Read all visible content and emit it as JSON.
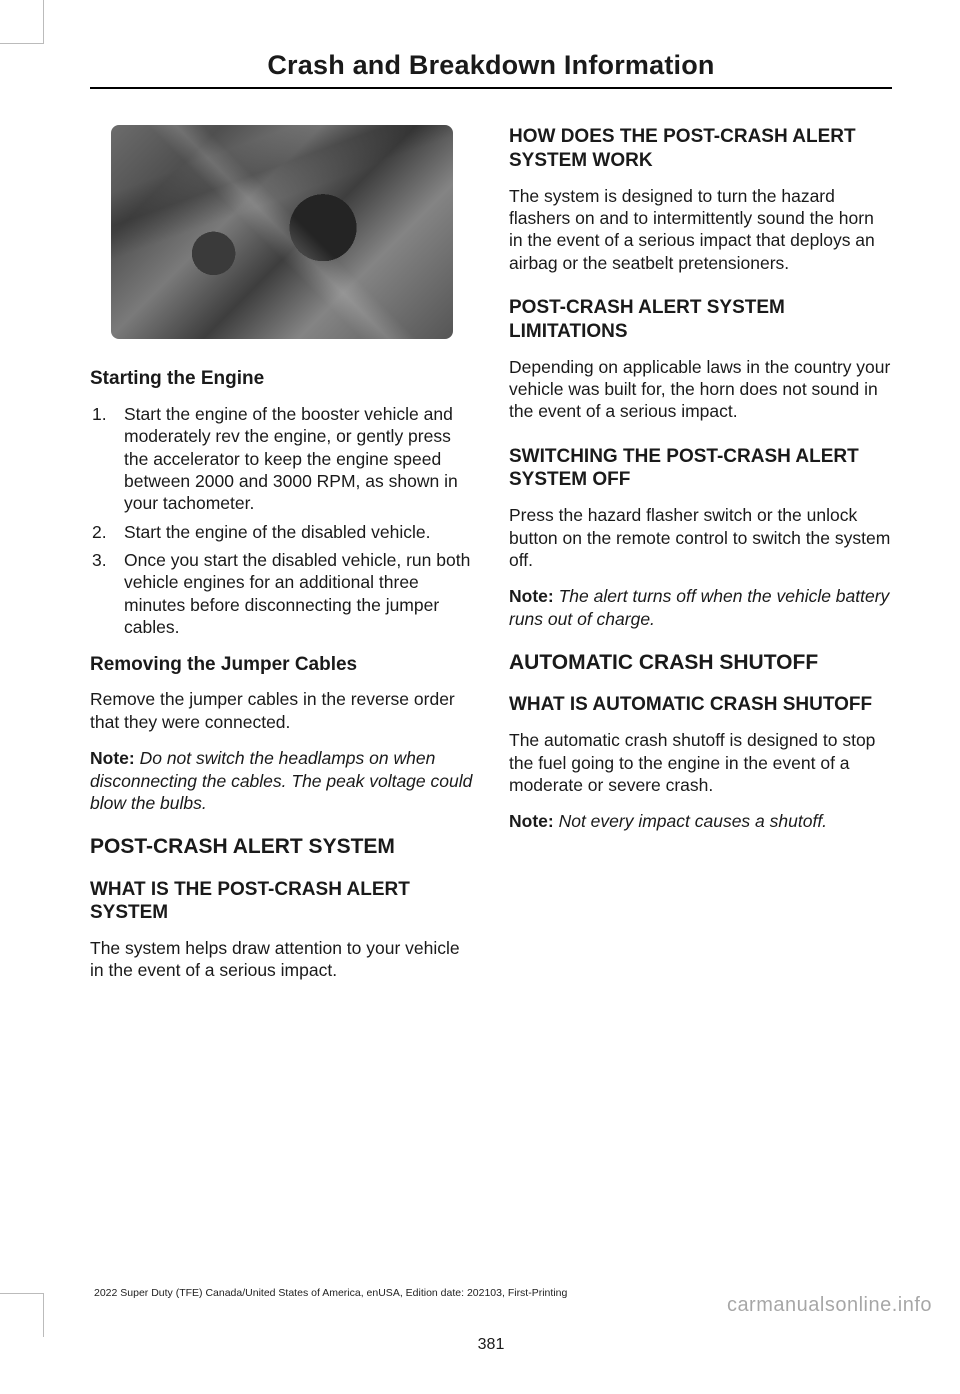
{
  "header": {
    "title": "Crash and Breakdown Information"
  },
  "left": {
    "starting_heading": "Starting the Engine",
    "steps": [
      "Start the engine of the booster vehicle and moderately rev the engine, or gently press the accelerator to keep the engine speed between 2000 and 3000 RPM, as shown in your tachometer.",
      "Start the engine of the disabled vehicle.",
      "Once you start the disabled vehicle, run both vehicle engines for an additional three minutes before disconnecting the jumper cables."
    ],
    "removing_heading": "Removing the Jumper Cables",
    "removing_body": "Remove the jumper cables in the reverse order that they were connected.",
    "note1_label": "Note:",
    "note1_body": " Do not switch the headlamps on when disconnecting the cables. The peak voltage could blow the bulbs.",
    "major1": "POST-CRASH ALERT SYSTEM",
    "what_is_heading": "WHAT IS THE POST-CRASH ALERT SYSTEM",
    "what_is_body": "The system helps draw attention to your vehicle in the event of a serious impact."
  },
  "right": {
    "how_heading": "HOW DOES THE POST-CRASH ALERT SYSTEM WORK",
    "how_body": "The system is designed to turn the hazard flashers on and to intermittently sound the horn in the event of a serious impact that deploys an airbag or the seatbelt pretensioners.",
    "limit_heading": "POST-CRASH ALERT SYSTEM LIMITATIONS",
    "limit_body": "Depending on applicable laws in the country your vehicle was built for, the horn does not sound in the event of a serious impact.",
    "switch_heading": "SWITCHING THE POST-CRASH ALERT SYSTEM OFF",
    "switch_body": "Press the hazard flasher switch or the unlock button on the remote control to switch the system off.",
    "note2_label": "Note:",
    "note2_body": " The alert turns off when the vehicle battery runs out of charge.",
    "major2": "AUTOMATIC CRASH SHUTOFF",
    "acs_heading": "WHAT IS AUTOMATIC CRASH SHUTOFF",
    "acs_body": "The automatic crash shutoff is designed to stop the fuel going to the engine in the event of a moderate or severe crash.",
    "note3_label": "Note:",
    "note3_body": " Not every impact causes a shutoff."
  },
  "footer": {
    "page_number": "381",
    "edition": "2022 Super Duty (TFE) Canada/United States of America, enUSA, Edition date: 202103, First-Printing",
    "watermark": "carmanualsonline.info"
  }
}
